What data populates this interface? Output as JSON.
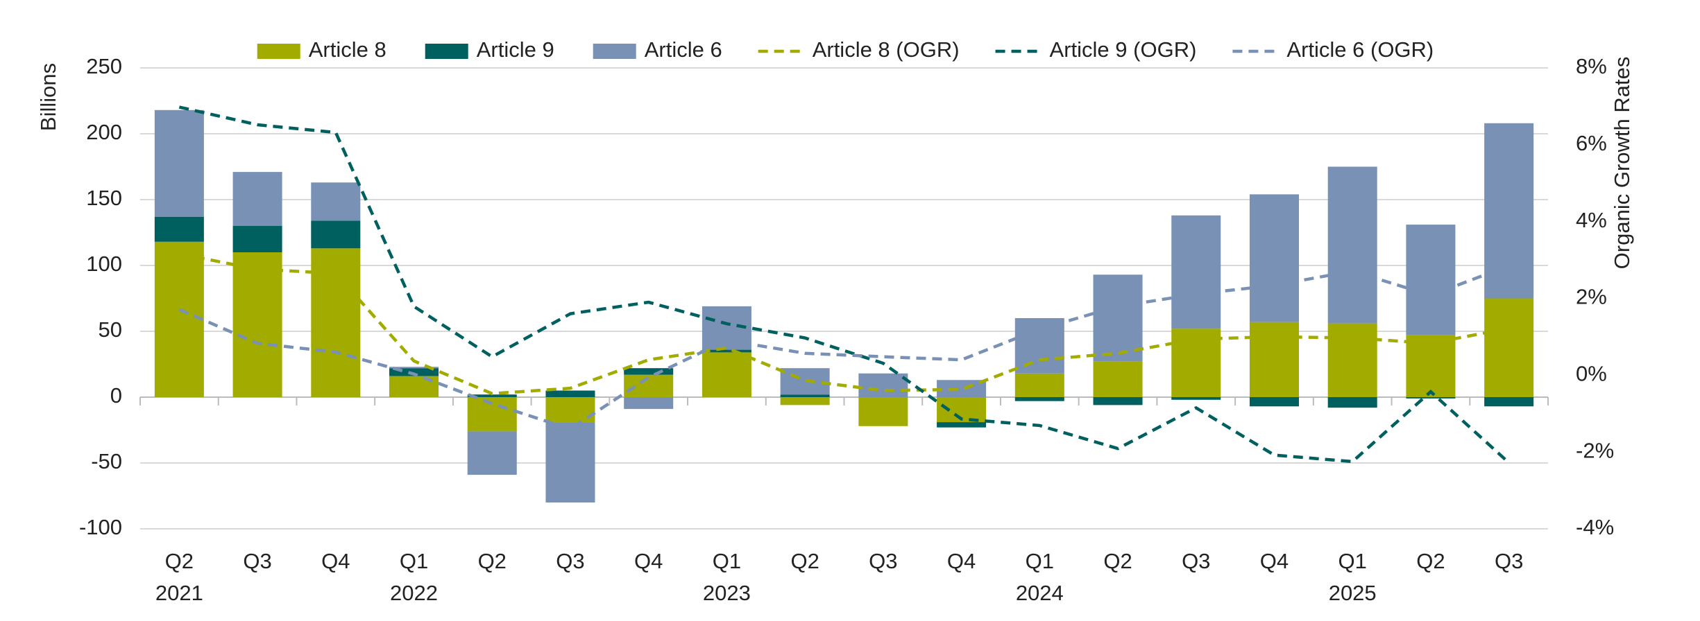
{
  "chart_data": {
    "type": "bar",
    "stacked": true,
    "y_label": "Billions",
    "y2_label": "Organic Growth Rates",
    "categories": [
      "Q2",
      "Q3",
      "Q4",
      "Q1",
      "Q2",
      "Q3",
      "Q4",
      "Q1",
      "Q2",
      "Q3",
      "Q4",
      "Q1",
      "Q2",
      "Q3",
      "Q4",
      "Q1",
      "Q2",
      "Q3"
    ],
    "year_labels": [
      "2021",
      null,
      null,
      "2022",
      null,
      null,
      null,
      "2023",
      null,
      null,
      null,
      "2024",
      null,
      null,
      null,
      "2025",
      null,
      null
    ],
    "ylim": [
      -100,
      250
    ],
    "yticks": [
      -100,
      -50,
      0,
      50,
      100,
      150,
      200,
      250
    ],
    "y2lim": [
      -4,
      8
    ],
    "y2ticks": [
      {
        "value": -4,
        "label": "-4%"
      },
      {
        "value": -2,
        "label": "-2%"
      },
      {
        "value": 0,
        "label": "0%"
      },
      {
        "value": 2,
        "label": "2%"
      },
      {
        "value": 4,
        "label": "4%"
      },
      {
        "value": 6,
        "label": "6%"
      },
      {
        "value": 8,
        "label": "8%"
      }
    ],
    "grid": true,
    "legend": "top",
    "series": [
      {
        "name": "Article 8",
        "type": "bar",
        "color": "#a2ab00",
        "values": [
          118,
          110,
          113,
          16,
          -26,
          -19,
          17,
          34,
          -6,
          -22,
          -19,
          18,
          27,
          52,
          57,
          56,
          47,
          75
        ]
      },
      {
        "name": "Article 9",
        "type": "bar",
        "color": "#005f5f",
        "values": [
          19,
          20,
          21,
          6,
          2,
          5,
          5,
          2,
          2,
          0,
          -4,
          -3,
          -6,
          -2,
          -7,
          -8,
          -1,
          -7
        ]
      },
      {
        "name": "Article 6",
        "type": "bar",
        "color": "#7891b5",
        "values": [
          81,
          41,
          29,
          1,
          -33,
          -61,
          -9,
          33,
          20,
          18,
          13,
          42,
          66,
          86,
          97,
          119,
          84,
          133
        ]
      },
      {
        "name": "Article 8 (OGR)",
        "type": "line",
        "axis": "y2",
        "color": "#a2ab00",
        "values": [
          3.16,
          2.76,
          2.65,
          0.37,
          -0.48,
          -0.34,
          0.4,
          0.71,
          -0.14,
          -0.4,
          -0.37,
          0.4,
          0.57,
          0.94,
          1.0,
          0.97,
          0.83,
          1.22
        ]
      },
      {
        "name": "Article 9 (OGR)",
        "type": "line",
        "axis": "y2",
        "color": "#005f5f",
        "values": [
          6.98,
          6.52,
          6.32,
          1.79,
          0.48,
          1.6,
          1.9,
          1.34,
          0.97,
          0.31,
          -1.14,
          -1.31,
          -1.91,
          -0.85,
          -2.08,
          -2.25,
          -0.43,
          -2.28
        ]
      },
      {
        "name": "Article 6 (OGR)",
        "type": "line",
        "axis": "y2",
        "color": "#7891b5",
        "values": [
          1.71,
          0.83,
          0.6,
          0.03,
          -0.74,
          -1.4,
          -0.06,
          0.91,
          0.57,
          0.48,
          0.4,
          1.2,
          1.79,
          2.11,
          2.34,
          2.71,
          2.08,
          2.85
        ]
      }
    ]
  }
}
